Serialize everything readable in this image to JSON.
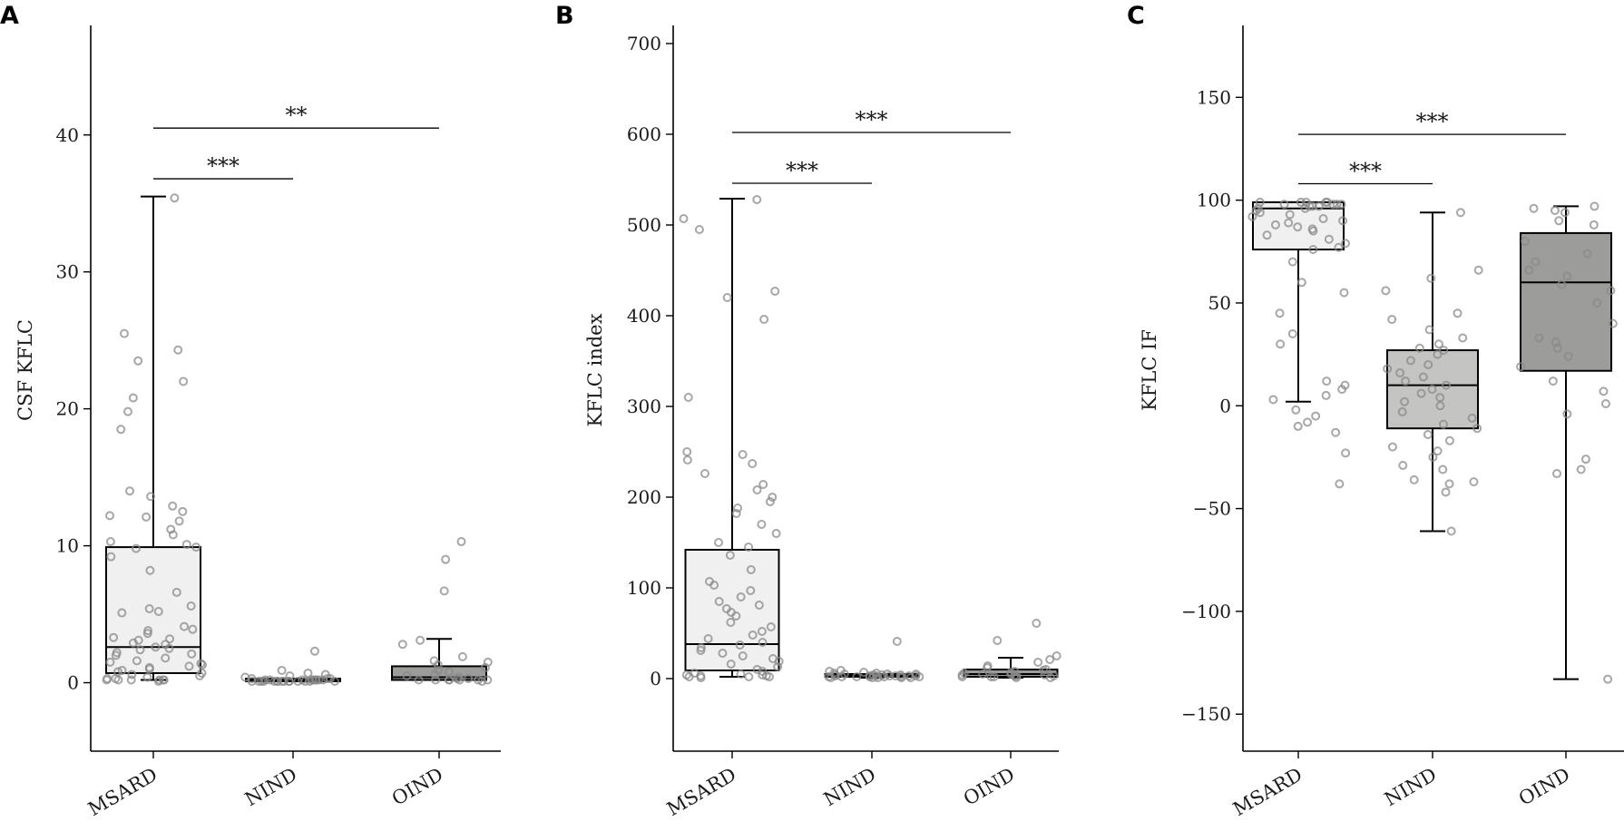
{
  "chart_data": [
    {
      "type": "boxplot",
      "panel": "A",
      "ylabel": "CSF KFLC",
      "xlabel": "",
      "categories": [
        "MSARD",
        "NIND",
        "OIND"
      ],
      "ylim": [
        -5,
        48
      ],
      "yticks": [
        0,
        10,
        20,
        30,
        40
      ],
      "yticklabels": [
        "0",
        "10",
        "20",
        "30",
        "40"
      ],
      "colors": {
        "MSARD": "#f0f0f0",
        "NIND": "#c4c4c2",
        "OIND": "#9c9c9a"
      },
      "boxes": [
        {
          "category": "MSARD",
          "whisker_low": 0.2,
          "q1": 0.7,
          "median": 2.6,
          "q3": 9.9,
          "whisker_high": 35.5
        },
        {
          "category": "NIND",
          "whisker_low": 0.1,
          "q1": 0.1,
          "median": 0.2,
          "q3": 0.3,
          "whisker_high": 0.3
        },
        {
          "category": "OIND",
          "whisker_low": 0.2,
          "q1": 0.2,
          "median": 0.4,
          "q3": 1.2,
          "whisker_high": 3.2
        }
      ],
      "points": {
        "MSARD": [
          35.4,
          25.5,
          24.3,
          23.5,
          22.0,
          20.8,
          19.8,
          18.5,
          14.0,
          13.6,
          12.9,
          12.5,
          12.2,
          12.1,
          11.8,
          11.2,
          10.8,
          10.3,
          10.1,
          9.9,
          9.8,
          9.2,
          8.2,
          6.6,
          5.6,
          5.4,
          5.2,
          5.1,
          4.1,
          3.9,
          3.8,
          3.6,
          3.3,
          3.2,
          3.1,
          2.9,
          2.8,
          2.6,
          2.5,
          2.4,
          2.2,
          2.1,
          2.0,
          1.8,
          1.6,
          1.5,
          1.4,
          1.3,
          1.2,
          1.1,
          1.0,
          0.9,
          0.8,
          0.7,
          0.6,
          0.5,
          0.4,
          0.3,
          0.3,
          0.2,
          0.2,
          0.2,
          0.2,
          0.2,
          0.2,
          0.1
        ],
        "NIND": [
          2.3,
          0.9,
          0.7,
          0.6,
          0.5,
          0.4,
          0.3,
          0.3,
          0.3,
          0.2,
          0.2,
          0.2,
          0.2,
          0.2,
          0.2,
          0.2,
          0.2,
          0.2,
          0.2,
          0.1,
          0.1,
          0.1,
          0.1,
          0.1,
          0.1,
          0.1,
          0.1,
          0.1,
          0.1,
          0.1,
          0.1,
          0.1,
          0.1,
          0.1
        ],
        "OIND": [
          10.3,
          9.0,
          6.7,
          3.1,
          2.8,
          1.9,
          1.6,
          1.5,
          1.3,
          1.1,
          0.9,
          0.8,
          0.6,
          0.5,
          0.4,
          0.3,
          0.3,
          0.2,
          0.2,
          0.2,
          0.2,
          0.2,
          0.2,
          0.2,
          0.1
        ]
      },
      "significance": [
        {
          "from": "MSARD",
          "to": "NIND",
          "y": 36.8,
          "label": "***"
        },
        {
          "from": "MSARD",
          "to": "OIND",
          "y": 40.5,
          "label": "**"
        }
      ]
    },
    {
      "type": "boxplot",
      "panel": "B",
      "ylabel": "KFLC index",
      "xlabel": "",
      "categories": [
        "MSARD",
        "NIND",
        "OIND"
      ],
      "ylim": [
        -80,
        720
      ],
      "yticks": [
        0,
        100,
        200,
        300,
        400,
        500,
        600,
        700
      ],
      "yticklabels": [
        "0",
        "100",
        "200",
        "300",
        "400",
        "500",
        "600",
        "700"
      ],
      "colors": {
        "MSARD": "#f0f0f0",
        "NIND": "#c4c4c2",
        "OIND": "#9c9c9a"
      },
      "boxes": [
        {
          "category": "MSARD",
          "whisker_low": 2,
          "q1": 9,
          "median": 38,
          "q3": 142,
          "whisker_high": 529
        },
        {
          "category": "NIND",
          "whisker_low": 1,
          "q1": 2,
          "median": 3,
          "q3": 5,
          "whisker_high": 5
        },
        {
          "category": "OIND",
          "whisker_low": 1,
          "q1": 2,
          "median": 5,
          "q3": 10,
          "whisker_high": 23
        }
      ],
      "points": {
        "MSARD": [
          528,
          507,
          495,
          427,
          420,
          396,
          310,
          250,
          247,
          241,
          237,
          226,
          214,
          208,
          200,
          195,
          188,
          182,
          170,
          160,
          150,
          145,
          136,
          120,
          107,
          103,
          97,
          90,
          85,
          81,
          77,
          73,
          69,
          62,
          57,
          52,
          48,
          44,
          40,
          37,
          34,
          31,
          28,
          25,
          22,
          19,
          16,
          13,
          10,
          8,
          6,
          5,
          4,
          4,
          3,
          3,
          2,
          2,
          2,
          1
        ],
        "NIND": [
          41,
          9,
          8,
          7,
          6,
          6,
          5,
          5,
          5,
          4,
          4,
          4,
          4,
          3,
          3,
          3,
          3,
          3,
          3,
          3,
          2,
          2,
          2,
          2,
          2,
          2,
          2,
          1,
          1,
          1,
          1,
          1
        ],
        "OIND": [
          61,
          42,
          25,
          21,
          18,
          14,
          12,
          10,
          9,
          8,
          7,
          6,
          5,
          5,
          4,
          4,
          3,
          3,
          3,
          2,
          2,
          2,
          1,
          1
        ]
      },
      "significance": [
        {
          "from": "MSARD",
          "to": "NIND",
          "y": 546,
          "label": "***"
        },
        {
          "from": "MSARD",
          "to": "OIND",
          "y": 602,
          "label": "***"
        }
      ]
    },
    {
      "type": "boxplot",
      "panel": "C",
      "ylabel": "KFLC IF",
      "xlabel": "",
      "categories": [
        "MSARD",
        "NIND",
        "OIND"
      ],
      "ylim": [
        -168,
        185
      ],
      "yticks": [
        -150,
        -100,
        -50,
        0,
        50,
        100,
        150
      ],
      "yticklabels": [
        "−150",
        "−100",
        "−50",
        "0",
        "50",
        "100",
        "150"
      ],
      "colors": {
        "MSARD": "#f0f0f0",
        "NIND": "#c4c4c2",
        "OIND": "#9c9c9a"
      },
      "boxes": [
        {
          "category": "MSARD",
          "whisker_low": 2,
          "q1": 76,
          "median": 96,
          "q3": 99,
          "whisker_high": 99
        },
        {
          "category": "NIND",
          "whisker_low": -61,
          "q1": -11,
          "median": 10,
          "q3": 27,
          "whisker_high": 94
        },
        {
          "category": "OIND",
          "whisker_low": -133,
          "q1": 17,
          "median": 60,
          "q3": 84,
          "whisker_high": 97
        }
      ],
      "points": {
        "MSARD": [
          99,
          99,
          99,
          99,
          99,
          98,
          98,
          98,
          98,
          97,
          97,
          97,
          96,
          96,
          95,
          94,
          93,
          92,
          91,
          90,
          89,
          88,
          87,
          86,
          85,
          83,
          81,
          79,
          77,
          76,
          70,
          60,
          55,
          45,
          35,
          30,
          12,
          10,
          8,
          5,
          3,
          -2,
          -5,
          -8,
          -10,
          -13,
          -23,
          -38
        ],
        "NIND": [
          94,
          66,
          62,
          56,
          45,
          42,
          37,
          33,
          30,
          28,
          27,
          25,
          22,
          20,
          18,
          16,
          14,
          12,
          10,
          8,
          6,
          4,
          2,
          0,
          -3,
          -6,
          -9,
          -11,
          -14,
          -17,
          -20,
          -22,
          -25,
          -29,
          -31,
          -36,
          -37,
          -38,
          -42,
          -61
        ],
        "OIND": [
          97,
          96,
          95,
          94,
          90,
          88,
          80,
          74,
          70,
          66,
          63,
          59,
          56,
          50,
          40,
          33,
          31,
          28,
          24,
          19,
          12,
          7,
          1,
          -4,
          -26,
          -31,
          -33,
          -133
        ]
      },
      "significance": [
        {
          "from": "MSARD",
          "to": "NIND",
          "y": 108,
          "label": "***"
        },
        {
          "from": "MSARD",
          "to": "OIND",
          "y": 132,
          "label": "***"
        }
      ]
    }
  ]
}
